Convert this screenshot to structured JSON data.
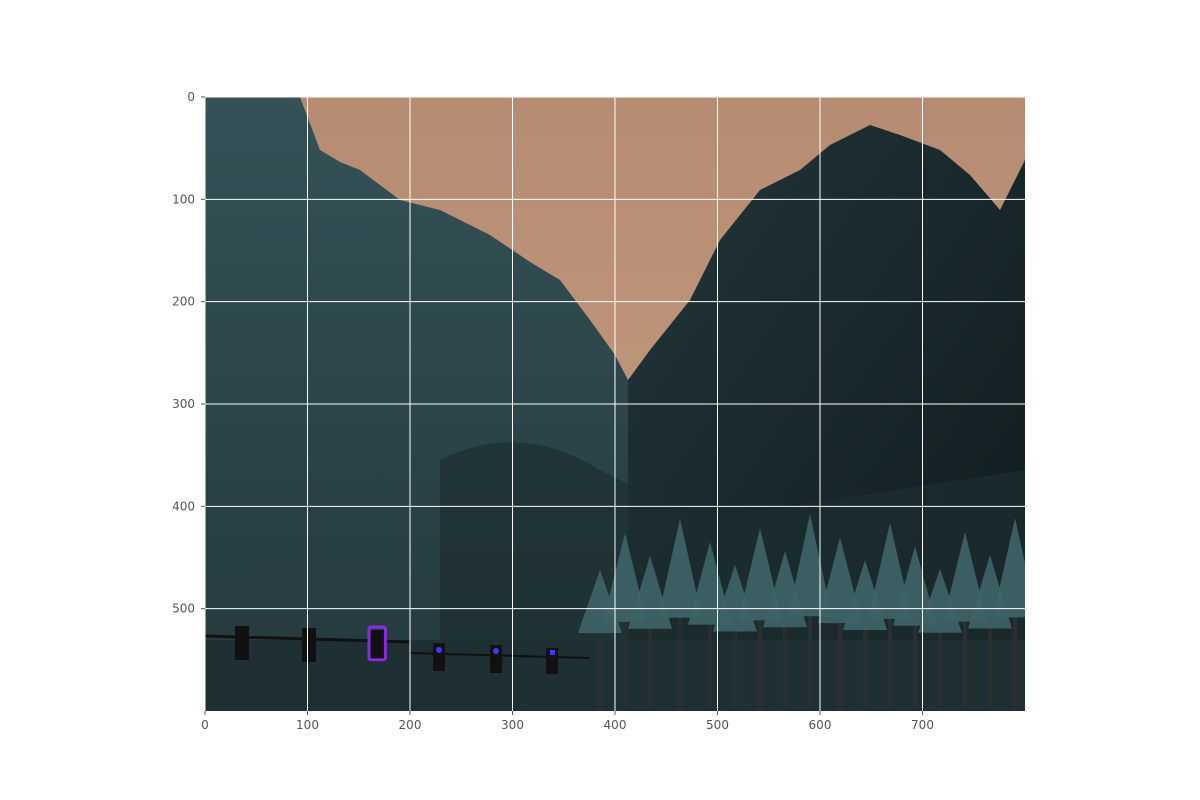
{
  "figure": {
    "image_description_width": 800,
    "image_description_height": 600
  },
  "axes": {
    "xlim": [
      0,
      800
    ],
    "ylim": [
      600,
      0
    ],
    "x_ticks": [
      0,
      100,
      200,
      300,
      400,
      500,
      600,
      700
    ],
    "y_ticks": [
      0,
      100,
      200,
      300,
      400,
      500
    ],
    "grid": true,
    "grid_color": "#ffffff"
  },
  "scene": {
    "sky_color": "#bf9377",
    "mountain_color": "#2f4b50",
    "dark_mountain_color": "#1c2b2e",
    "tree_color": "#3e6468"
  },
  "annotations": [
    {
      "label": "traffic-light-box",
      "x0": 160,
      "y0": 518,
      "x1": 176,
      "y1": 550,
      "color": "#8a2be2"
    }
  ]
}
